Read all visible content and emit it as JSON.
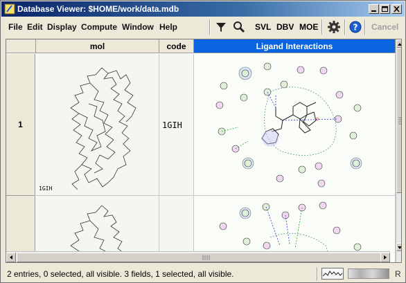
{
  "window": {
    "title": "Database Viewer: $HOME/work/data.mdb"
  },
  "menu": {
    "items": [
      "File",
      "Edit",
      "Display",
      "Compute",
      "Window",
      "Help"
    ]
  },
  "toolbar": {
    "filter_icon": "filter-funnel-icon",
    "search_icon": "magnifier-icon",
    "svl_label": "SVL",
    "dbv_label": "DBV",
    "moe_label": "MOE",
    "settings_icon": "gear-icon",
    "help_icon": "help-question-icon",
    "cancel_label": "Cancel"
  },
  "table": {
    "columns": [
      "mol",
      "code",
      "Ligand Interactions"
    ],
    "selected_column": "Ligand Interactions",
    "rows": [
      {
        "index": "1",
        "code": "1GIH",
        "mol_label": "1GIH"
      },
      {
        "index": "",
        "code": "",
        "mol_label": ""
      }
    ]
  },
  "status": {
    "text": "2 entries, 0 selected, all visible. 3 fields, 1 selected, all visible.",
    "right_letter": "R"
  },
  "colors": {
    "selected_header": "#0a64e0",
    "title_gradient_start": "#0a246a"
  }
}
